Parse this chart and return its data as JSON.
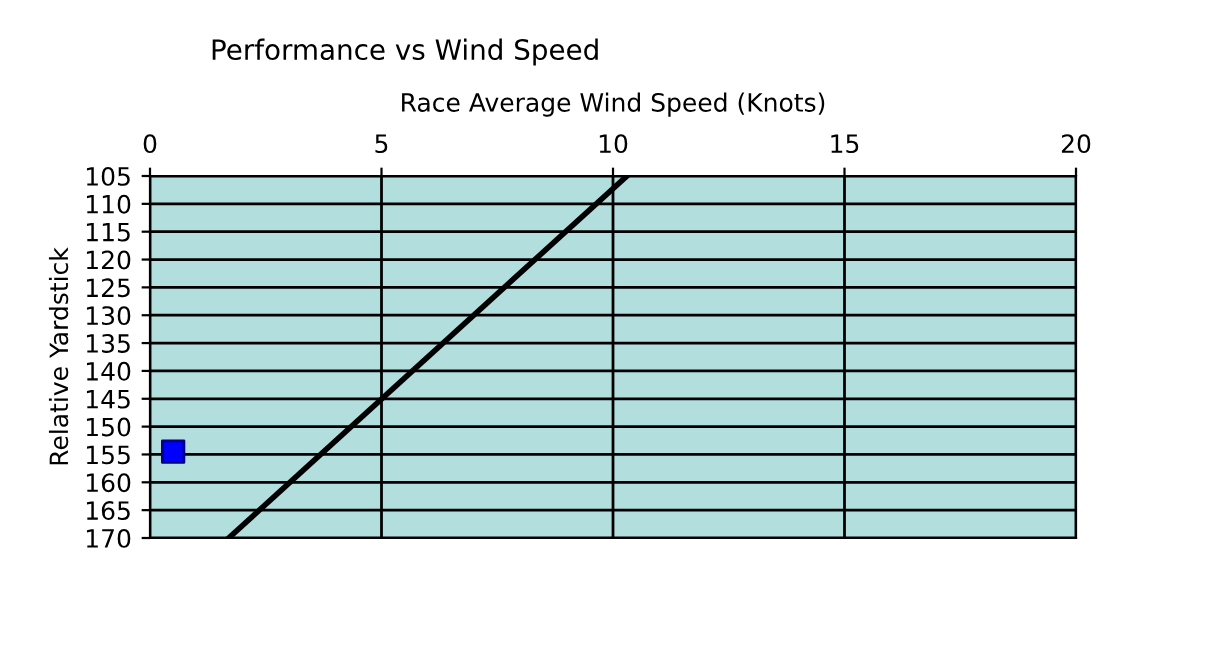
{
  "chart_data": {
    "type": "line",
    "title": "Performance vs Wind Speed",
    "xlabel": "Race Average Wind Speed (Knots)",
    "ylabel": "Relative Yardstick",
    "xlim": [
      0,
      20
    ],
    "xticks": [
      0,
      5,
      10,
      15,
      20
    ],
    "ylim": [
      170,
      105
    ],
    "yticks": [
      105,
      110,
      115,
      120,
      125,
      130,
      135,
      140,
      145,
      150,
      155,
      160,
      165,
      170
    ],
    "grid": true,
    "legend": false,
    "series": [
      {
        "color": "#000000",
        "x": [
          1.7,
          10.3
        ],
        "values": [
          170,
          105
        ],
        "marker": "none",
        "line_style": "solid"
      },
      {
        "type": "scatter",
        "color": "#0000ff",
        "x": [
          0.5
        ],
        "values": [
          154.5
        ],
        "marker": "square"
      }
    ]
  }
}
